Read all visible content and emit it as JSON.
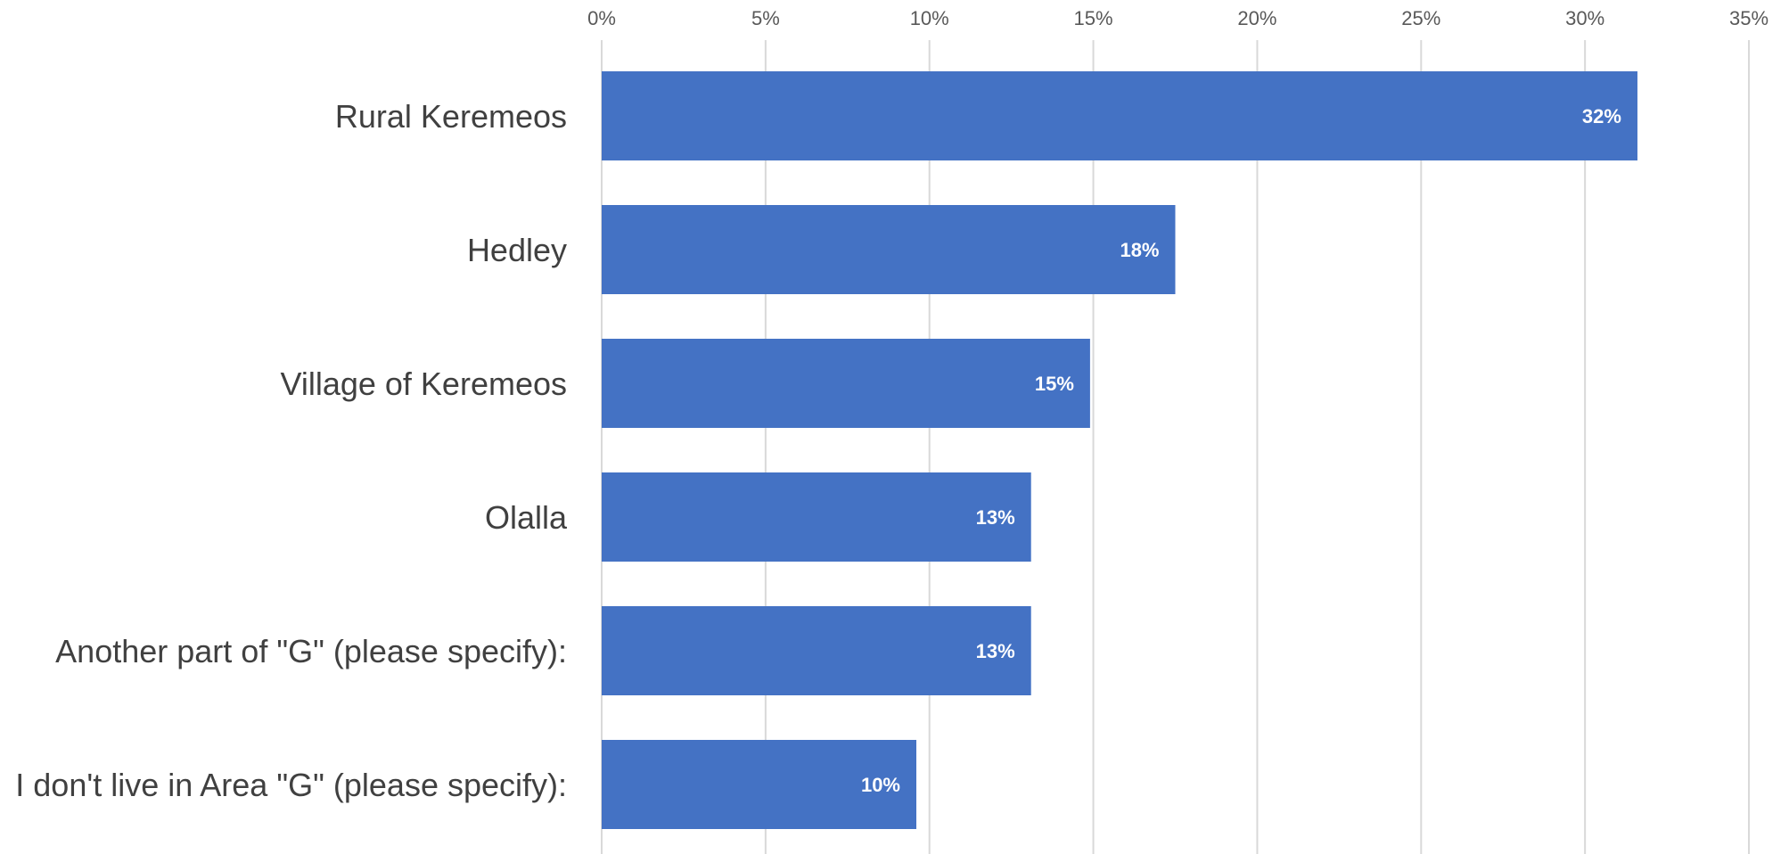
{
  "chart_data": {
    "type": "bar",
    "orientation": "horizontal",
    "title": "",
    "xlabel": "",
    "ylabel": "",
    "categories": [
      "Rural Keremeos",
      "Hedley",
      "Village of Keremeos",
      "Olalla",
      "Another part of \"G\" (please specify):",
      "I don't live in Area \"G\" (please specify):"
    ],
    "values": [
      31.6,
      17.5,
      14.9,
      13.1,
      13.1,
      9.6
    ],
    "data_labels": [
      "32%",
      "18%",
      "15%",
      "13%",
      "13%",
      "10%"
    ],
    "xlim": [
      0,
      35
    ],
    "ticks": [
      0,
      5,
      10,
      15,
      20,
      25,
      30,
      35
    ],
    "tick_labels": [
      "0%",
      "5%",
      "10%",
      "15%",
      "20%",
      "25%",
      "30%",
      "35%"
    ],
    "axis_position": "top",
    "grid": true,
    "legend": "none",
    "colors": {
      "bar": "#4472C4",
      "grid": "#D9D9D9",
      "data_label": "#FFFFFF",
      "category_label": "#404040",
      "tick_label": "#595959"
    }
  }
}
